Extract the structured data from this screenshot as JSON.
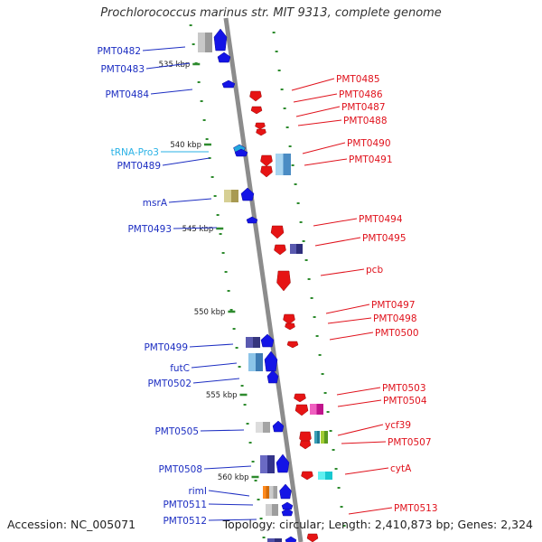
{
  "title": "Prochlorococcus marinus str. MIT 9313, complete genome",
  "footer": {
    "accession": "Accession: NC_005071",
    "summary": "Topology: circular; Length: 2,410,873 bp; Genes: 2,324"
  },
  "colors": {
    "forward_label": "#1d2ec2",
    "reverse_label": "#e0121c",
    "trna_label": "#2ab2e6",
    "forward_arrow": "#1414e6",
    "reverse_arrow": "#e61414",
    "backbone": "#8c8c8c",
    "tick": "#2e8b2e"
  },
  "kbp_markers": [
    "535 kbp",
    "540 kbp",
    "545 kbp",
    "550 kbp",
    "555 kbp",
    "560 kbp"
  ],
  "forward_genes": [
    {
      "label": "PMT0482",
      "type": "cds"
    },
    {
      "label": "PMT0483",
      "type": "cds"
    },
    {
      "label": "PMT0484",
      "type": "cds"
    },
    {
      "label": "tRNA-Pro3",
      "type": "trna"
    },
    {
      "label": "PMT0489",
      "type": "cds"
    },
    {
      "label": "msrA",
      "type": "cds"
    },
    {
      "label": "PMT0493",
      "type": "cds"
    },
    {
      "label": "PMT0499",
      "type": "cds"
    },
    {
      "label": "futC",
      "type": "cds"
    },
    {
      "label": "PMT0502",
      "type": "cds"
    },
    {
      "label": "PMT0505",
      "type": "cds"
    },
    {
      "label": "PMT0508",
      "type": "cds"
    },
    {
      "label": "rimI",
      "type": "cds"
    },
    {
      "label": "PMT0511",
      "type": "cds"
    },
    {
      "label": "PMT0512",
      "type": "cds"
    }
  ],
  "reverse_genes": [
    {
      "label": "PMT0485"
    },
    {
      "label": "PMT0486"
    },
    {
      "label": "PMT0487"
    },
    {
      "label": "PMT0488"
    },
    {
      "label": "PMT0490"
    },
    {
      "label": "PMT0491"
    },
    {
      "label": "PMT0494"
    },
    {
      "label": "PMT0495"
    },
    {
      "label": "pcb"
    },
    {
      "label": "PMT0497"
    },
    {
      "label": "PMT0498"
    },
    {
      "label": "PMT0500"
    },
    {
      "label": "PMT0503"
    },
    {
      "label": "PMT0504"
    },
    {
      "label": "ycf39"
    },
    {
      "label": "PMT0507"
    },
    {
      "label": "cytA"
    },
    {
      "label": "PMT0513"
    }
  ]
}
